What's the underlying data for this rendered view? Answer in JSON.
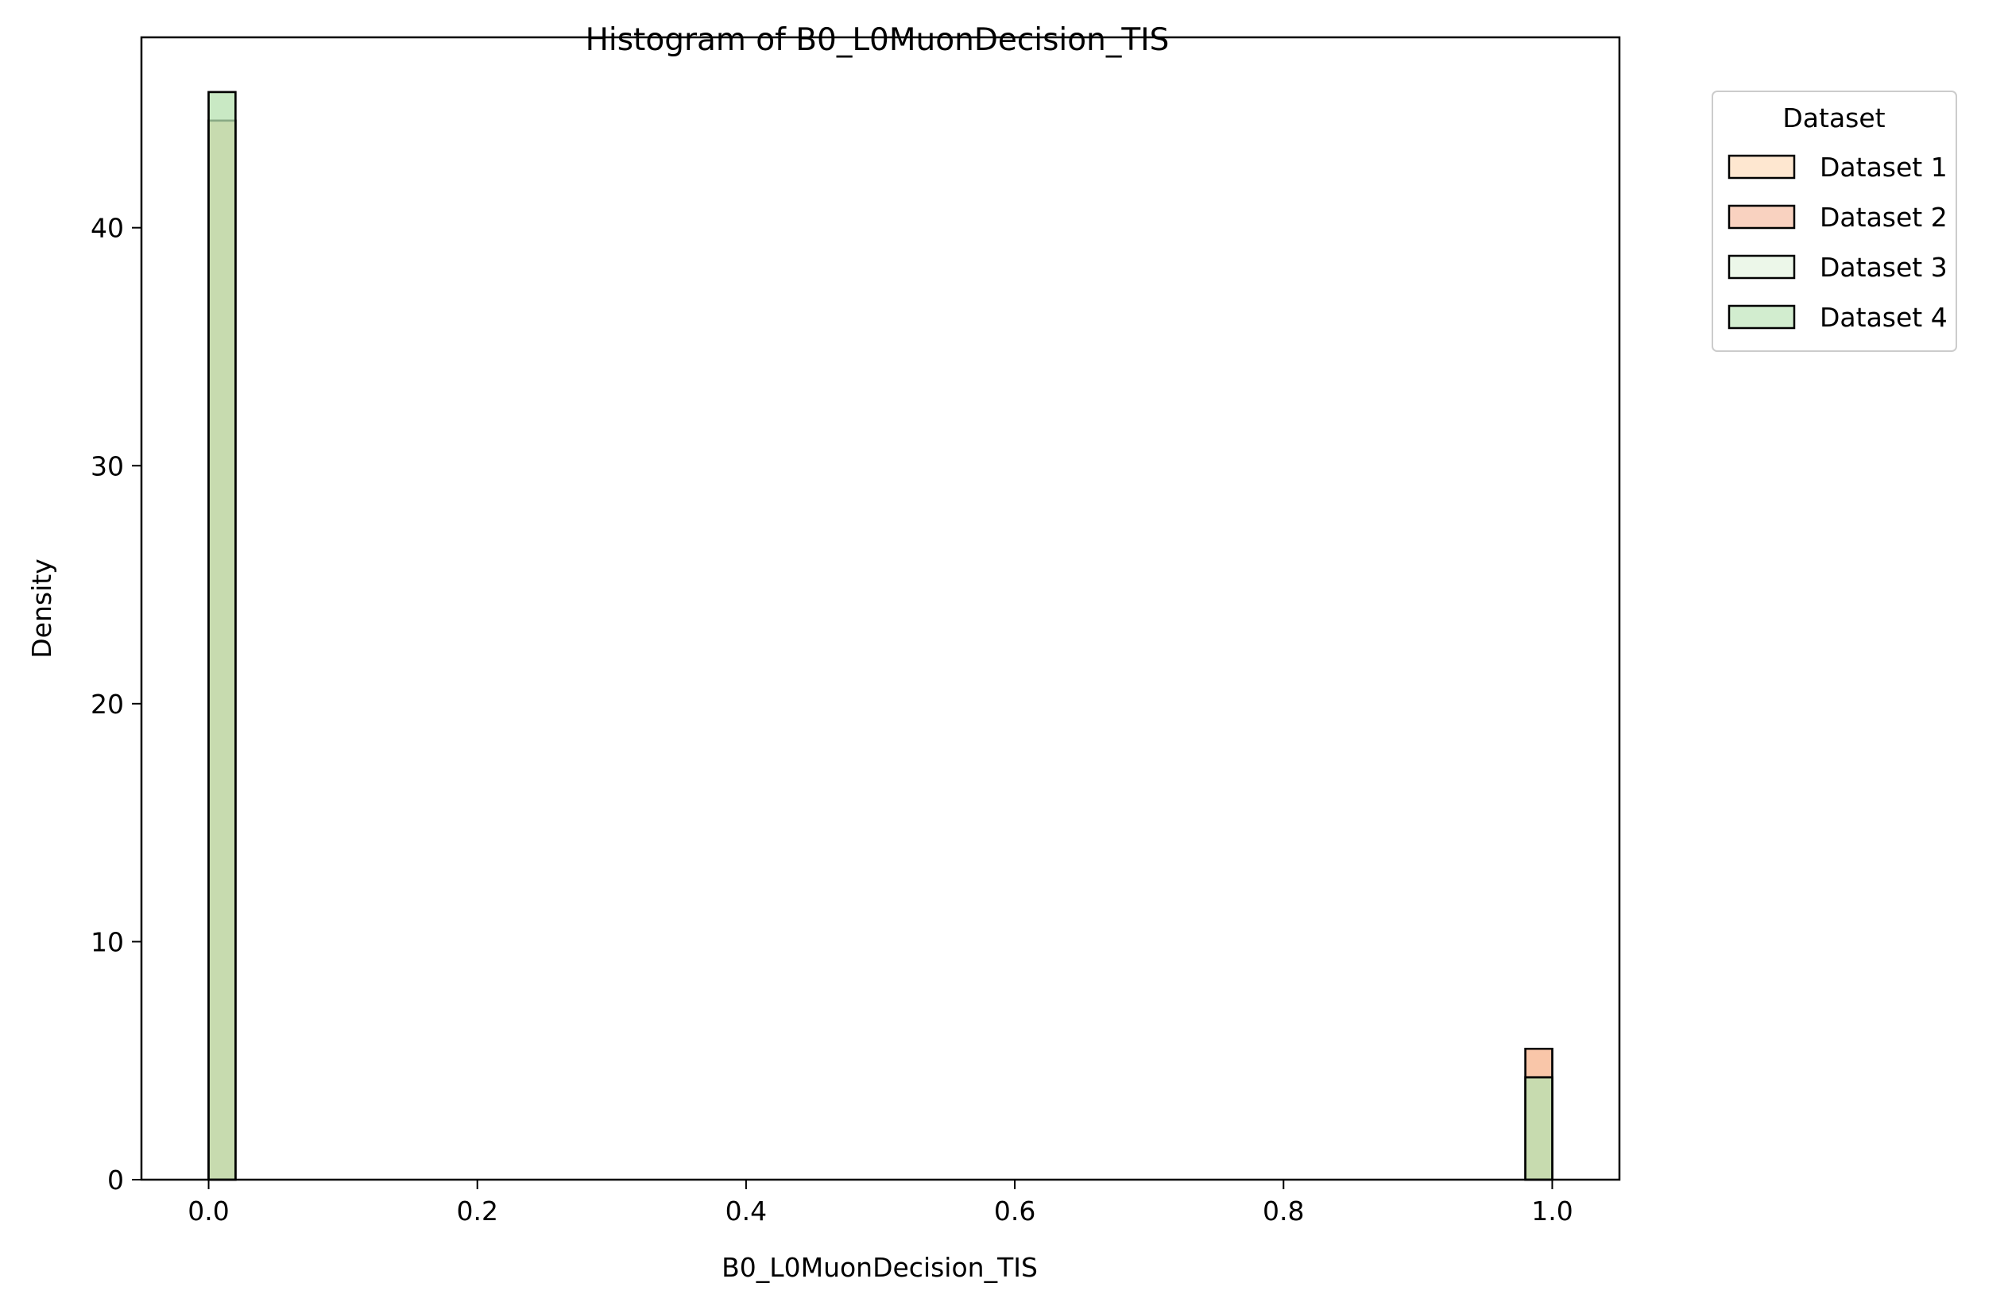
{
  "chart_data": {
    "type": "bar",
    "title": "Histogram of B0_L0MuonDecision_TIS",
    "xlabel": "B0_L0MuonDecision_TIS",
    "ylabel": "Density",
    "xlim": [
      -0.05,
      1.05
    ],
    "ylim": [
      0,
      48
    ],
    "xticks": [
      0.0,
      0.2,
      0.4,
      0.6,
      0.8,
      1.0
    ],
    "xtick_labels": [
      "0.0",
      "0.2",
      "0.4",
      "0.6",
      "0.8",
      "1.0"
    ],
    "yticks": [
      0,
      10,
      20,
      30,
      40
    ],
    "ytick_labels": [
      "0",
      "10",
      "20",
      "30",
      "40"
    ],
    "grid": false,
    "bin_width": 0.02,
    "legend": {
      "title": "Dataset",
      "placement": "outside-top-right"
    },
    "series": [
      {
        "name": "Dataset 1",
        "color": "#fdd0a2",
        "bins": [
          {
            "x0": 0.0,
            "x1": 0.02,
            "density": 44.5
          },
          {
            "x0": 0.98,
            "x1": 1.0,
            "density": 5.5
          }
        ]
      },
      {
        "name": "Dataset 2",
        "color": "#f4a582",
        "bins": [
          {
            "x0": 0.0,
            "x1": 0.02,
            "density": 44.5
          },
          {
            "x0": 0.98,
            "x1": 1.0,
            "density": 5.5
          }
        ]
      },
      {
        "name": "Dataset 3",
        "color": "#d9f0d3",
        "bins": [
          {
            "x0": 0.0,
            "x1": 0.02,
            "density": 45.7
          },
          {
            "x0": 0.98,
            "x1": 1.0,
            "density": 4.3
          }
        ]
      },
      {
        "name": "Dataset 4",
        "color": "#a6dba0",
        "bins": [
          {
            "x0": 0.0,
            "x1": 0.02,
            "density": 45.7
          },
          {
            "x0": 0.98,
            "x1": 1.0,
            "density": 4.3
          }
        ]
      }
    ]
  }
}
